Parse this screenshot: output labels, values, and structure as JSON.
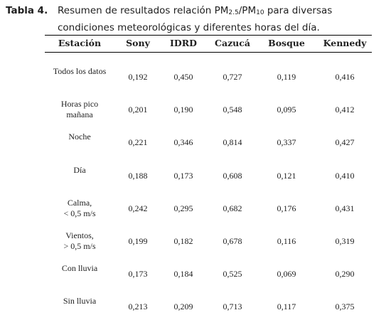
{
  "caption": {
    "label": "Tabla 4.",
    "text_before": "Resumen de resultados relación PM",
    "sub1": "2.5",
    "slash": "/PM",
    "sub2": "10",
    "text_after": " para diversas condiciones meteorológicas y diferentes horas del día."
  },
  "table": {
    "headers": [
      "Estación",
      "Sony",
      "IDRD",
      "Cazucá",
      "Bosque",
      "Kennedy"
    ],
    "rows": [
      {
        "label": [
          "Todos los datos"
        ],
        "values": [
          "0,192",
          "0,450",
          "0,727",
          "0,119",
          "0,416"
        ]
      },
      {
        "label": [
          "Horas pico",
          "mañana"
        ],
        "values": [
          "0,201",
          "0,190",
          "0,548",
          "0,095",
          "0,412"
        ]
      },
      {
        "label": [
          "Noche"
        ],
        "values": [
          "0,221",
          "0,346",
          "0,814",
          "0,337",
          "0,427"
        ]
      },
      {
        "label": [
          "Día"
        ],
        "values": [
          "0,188",
          "0,173",
          "0,608",
          "0,121",
          "0,410"
        ]
      },
      {
        "label": [
          "Calma,",
          "< 0,5 m/s"
        ],
        "values": [
          "0,242",
          "0,295",
          "0,682",
          "0,176",
          "0,431"
        ]
      },
      {
        "label": [
          "Vientos,",
          "> 0,5 m/s"
        ],
        "values": [
          "0,199",
          "0,182",
          "0,678",
          "0,116",
          "0,319"
        ]
      },
      {
        "label": [
          "Con lluvia"
        ],
        "values": [
          "0,173",
          "0,184",
          "0,525",
          "0,069",
          "0,290"
        ]
      },
      {
        "label": [
          "Sin lluvia"
        ],
        "values": [
          "0,213",
          "0,209",
          "0,713",
          "0,117",
          "0,375"
        ]
      }
    ]
  }
}
